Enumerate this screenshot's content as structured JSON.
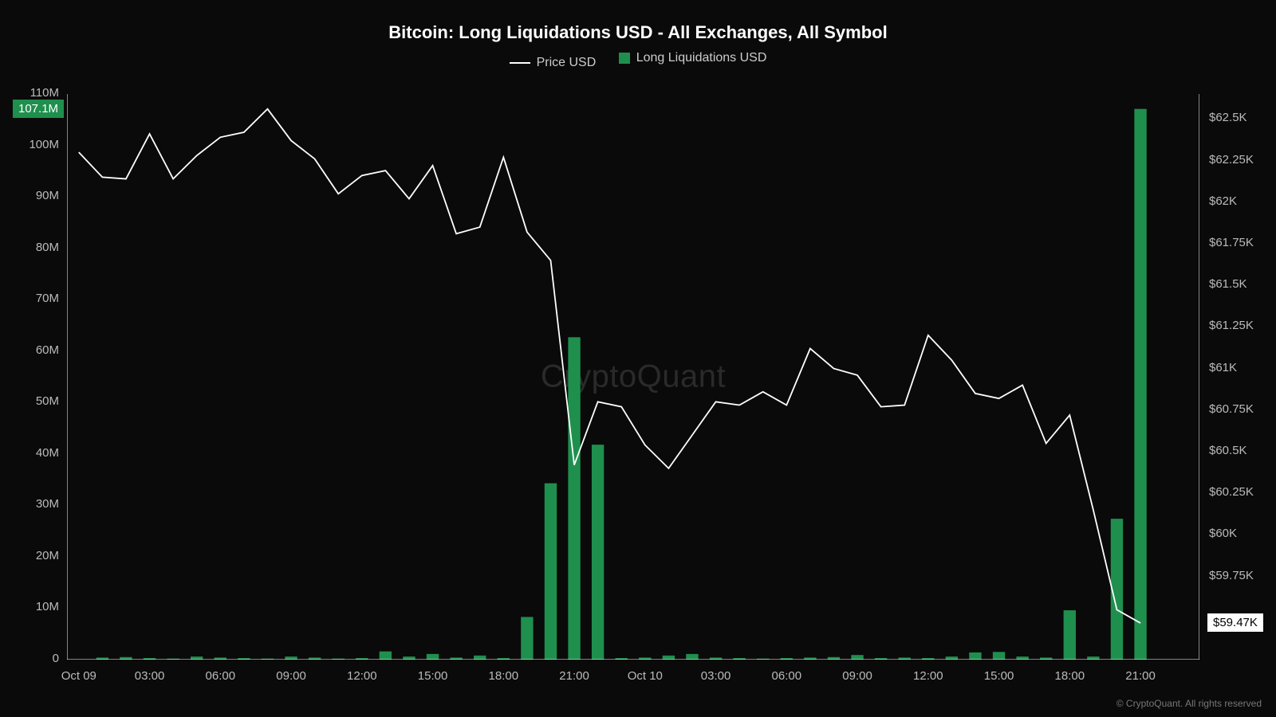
{
  "title": "Bitcoin: Long Liquidations USD - All Exchanges, All Symbol",
  "legend": {
    "line_label": "Price USD",
    "bar_label": "Long Liquidations USD"
  },
  "watermark": "CryptoQuant",
  "copyright": "© CryptoQuant. All rights reserved",
  "colors": {
    "background": "#0a0a0a",
    "line": "#ffffff",
    "bar": "#1f8f4e",
    "axis_text": "#bbbbbb",
    "grid": "#222222",
    "watermark": "#2a2a2a",
    "badge_left_bg": "#1f8f4e",
    "badge_left_text": "#ffffff",
    "badge_right_bg": "#ffffff",
    "badge_right_text": "#000000",
    "axis_line": "#ffffff"
  },
  "chart": {
    "type": "combo-bar-line",
    "x": {
      "count": 48,
      "tick_indices": [
        0,
        3,
        6,
        9,
        12,
        15,
        18,
        21,
        24,
        27,
        30,
        33,
        36,
        39,
        42,
        45
      ],
      "tick_labels": [
        "Oct 09",
        "03:00",
        "06:00",
        "09:00",
        "12:00",
        "15:00",
        "18:00",
        "21:00",
        "Oct 10",
        "03:00",
        "06:00",
        "09:00",
        "12:00",
        "15:00",
        "18:00",
        "21:00"
      ]
    },
    "y_left": {
      "min": 0,
      "max": 110,
      "ticks": [
        0,
        10,
        20,
        30,
        40,
        50,
        60,
        70,
        80,
        90,
        100,
        110
      ],
      "tick_labels": [
        "0",
        "10M",
        "20M",
        "30M",
        "40M",
        "50M",
        "60M",
        "70M",
        "80M",
        "90M",
        "100M",
        "110M"
      ],
      "current_badge": "107.1M",
      "current_value": 107.1
    },
    "y_right": {
      "min": 59.25,
      "max": 62.65,
      "ticks": [
        59.75,
        60,
        60.25,
        60.5,
        60.75,
        61,
        61.25,
        61.5,
        61.75,
        62,
        62.25,
        62.5
      ],
      "tick_labels": [
        "$59.75K",
        "$60K",
        "$60.25K",
        "$60.5K",
        "$60.75K",
        "$61K",
        "$61.25K",
        "$61.5K",
        "$61.75K",
        "$62K",
        "$62.25K",
        "$62.5K"
      ],
      "current_badge": "$59.47K",
      "current_value": 59.47
    },
    "bars": [
      0,
      0.4,
      0.5,
      0.3,
      0.2,
      0.6,
      0.4,
      0.3,
      0.2,
      0.6,
      0.4,
      0.2,
      0.3,
      1.6,
      0.6,
      1.1,
      0.4,
      0.8,
      0.3,
      8.3,
      34.3,
      62.7,
      41.8,
      0.3,
      0.4,
      0.8,
      1.1,
      0.4,
      0.3,
      0.2,
      0.3,
      0.4,
      0.5,
      0.9,
      0.3,
      0.4,
      0.3,
      0.6,
      1.4,
      1.5,
      0.6,
      0.4,
      9.6,
      0.6,
      27.4,
      107.1,
      0,
      0
    ],
    "price": [
      62.3,
      62.15,
      62.14,
      62.41,
      62.14,
      62.28,
      62.39,
      62.42,
      62.56,
      62.37,
      62.26,
      62.05,
      62.16,
      62.19,
      62.02,
      62.22,
      61.81,
      61.85,
      62.27,
      61.82,
      61.65,
      60.42,
      60.8,
      60.77,
      60.54,
      60.4,
      60.6,
      60.8,
      60.78,
      60.86,
      60.78,
      61.12,
      61.0,
      60.96,
      60.77,
      60.78,
      61.2,
      61.05,
      60.85,
      60.82,
      60.9,
      60.55,
      60.72,
      60.15,
      59.55,
      59.47
    ],
    "bar_width_ratio": 0.52,
    "line_width": 1.8
  }
}
